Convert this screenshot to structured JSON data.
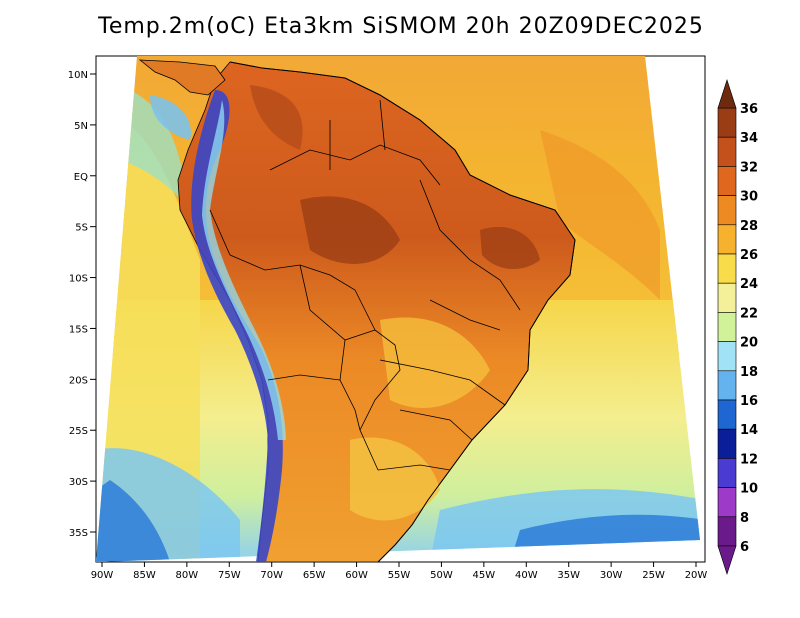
{
  "title": "Temp.2m(oC) Eta3km SiSMOM 20h 20Z09DEC2025",
  "map": {
    "lat_labels": [
      "10N",
      "5N",
      "EQ",
      "5S",
      "10S",
      "15S",
      "20S",
      "25S",
      "30S",
      "35S"
    ],
    "lat_values": [
      10,
      5,
      0,
      -5,
      -10,
      -15,
      -20,
      -25,
      -30,
      -35
    ],
    "lon_labels": [
      "90W",
      "85W",
      "80W",
      "75W",
      "70W",
      "65W",
      "60W",
      "55W",
      "50W",
      "45W",
      "40W",
      "35W",
      "30W",
      "25W",
      "20W"
    ],
    "lon_values": [
      -90,
      -85,
      -80,
      -75,
      -70,
      -65,
      -60,
      -55,
      -50,
      -45,
      -40,
      -35,
      -30,
      -25,
      -20
    ],
    "lon_range": [
      -90,
      -20
    ],
    "lat_range": [
      -38,
      12
    ],
    "variable": "2 m air temperature",
    "units": "°C"
  },
  "colorbar": {
    "labels": [
      "36",
      "34",
      "32",
      "30",
      "28",
      "26",
      "24",
      "22",
      "20",
      "18",
      "16",
      "14",
      "12",
      "10",
      "8",
      "6"
    ],
    "values": [
      36,
      34,
      32,
      30,
      28,
      26,
      24,
      22,
      20,
      18,
      16,
      14,
      12,
      10,
      8,
      6
    ],
    "colors": [
      "#6e2a0e",
      "#9a3c14",
      "#c4501c",
      "#e0681e",
      "#ee8a22",
      "#f6b12e",
      "#f9dc4a",
      "#f4f09a",
      "#d2f29a",
      "#a2e2f6",
      "#64b2ee",
      "#1e66d2",
      "#0a1e9a",
      "#4a3cd2",
      "#9e3ac8",
      "#6a1a8a"
    ]
  }
}
